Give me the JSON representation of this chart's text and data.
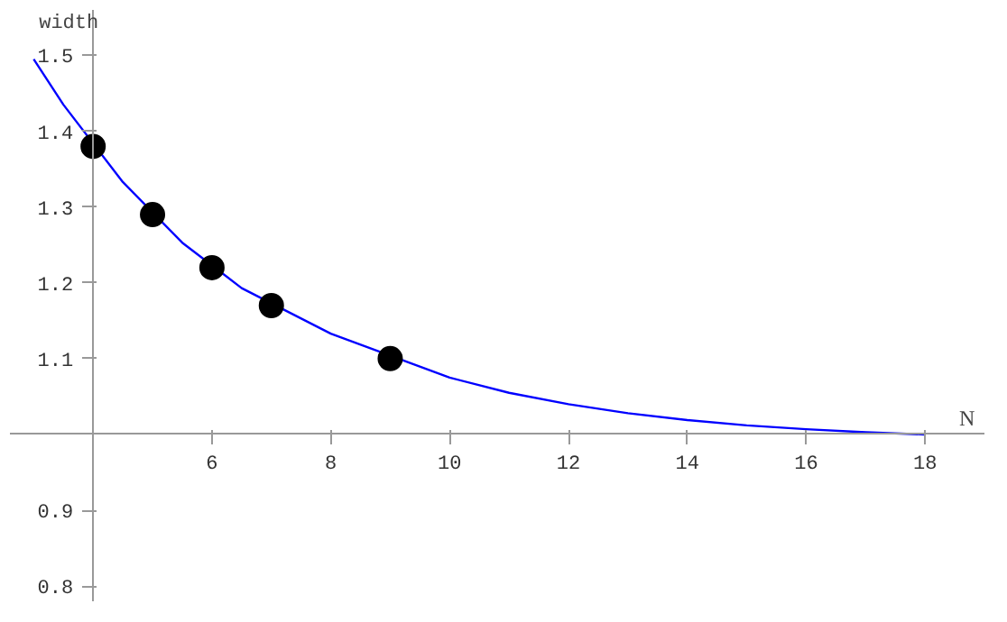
{
  "chart_data": {
    "type": "scatter",
    "xlabel": "N",
    "ylabel": "width",
    "xlim": [
      2.6,
      19.0
    ],
    "ylim": [
      0.78,
      1.56
    ],
    "xticks": [
      6,
      8,
      10,
      12,
      14,
      16,
      18
    ],
    "yticks": [
      0.8,
      0.9,
      1.1,
      1.2,
      1.3,
      1.4,
      1.5
    ],
    "grid": false,
    "series": [
      {
        "type": "line",
        "color": "#0000ff",
        "x": [
          3,
          3.5,
          4.5,
          5.5,
          6.5,
          8,
          10,
          11,
          12,
          13,
          14,
          15,
          16,
          17,
          18
        ],
        "values": [
          1.495,
          1.435,
          1.333,
          1.253,
          1.193,
          1.133,
          1.075,
          1.055,
          1.04,
          1.028,
          1.019,
          1.012,
          1.007,
          1.003,
          1.0
        ]
      },
      {
        "marker": "circle",
        "color": "#000000",
        "x": [
          4,
          5,
          6,
          7,
          9
        ],
        "values": [
          1.38,
          1.29,
          1.22,
          1.17,
          1.1
        ]
      }
    ]
  }
}
